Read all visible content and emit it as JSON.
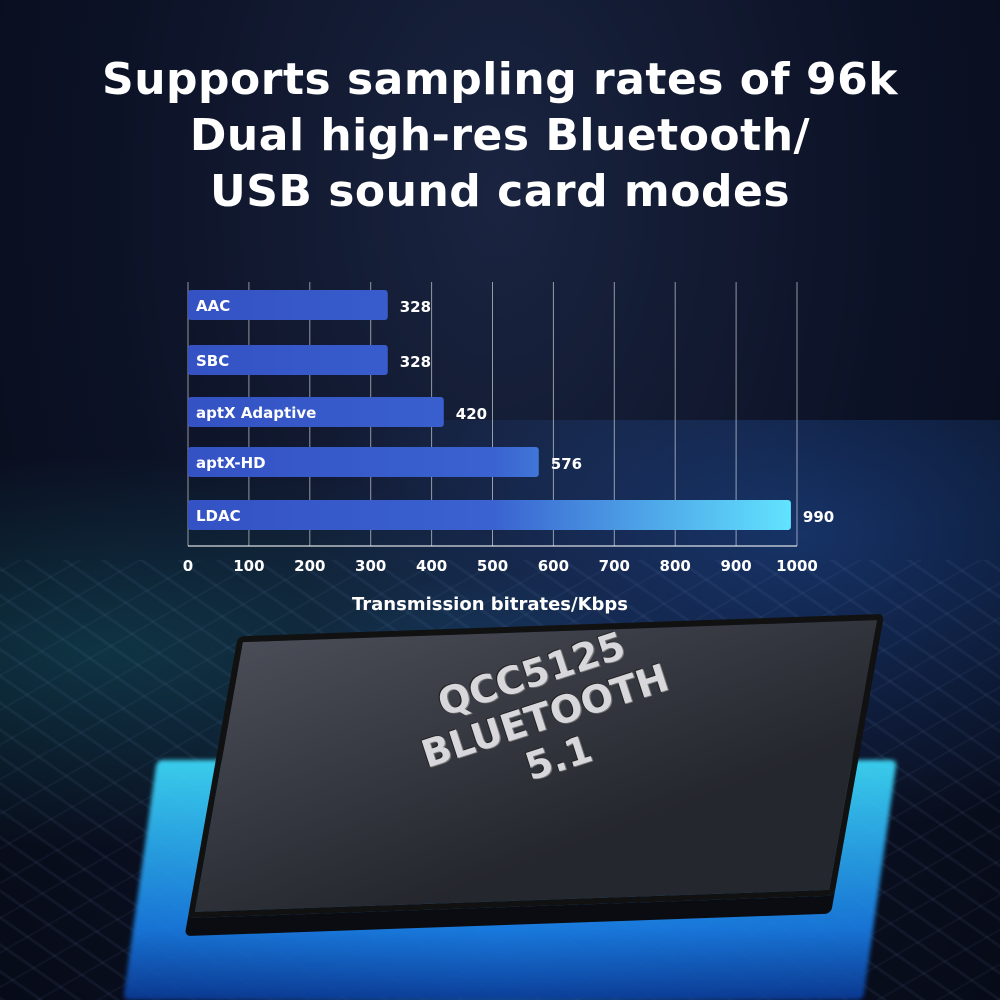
{
  "headline": [
    "Supports sampling rates of 96k",
    "Dual high-res Bluetooth/",
    "USB sound card modes"
  ],
  "chip": {
    "lines": [
      "QCC5125",
      "BLUETOOTH",
      "5.1"
    ]
  },
  "chart_data": {
    "type": "bar",
    "orientation": "horizontal",
    "categories": [
      "AAC",
      "SBC",
      "aptX Adaptive",
      "aptX-HD",
      "LDAC"
    ],
    "values": [
      328,
      328,
      420,
      576,
      990
    ],
    "xlabel": "Transmission bitrates/Kbps",
    "ylabel": "",
    "xlim": [
      0,
      1000
    ],
    "xticks": [
      "0",
      "100",
      "200",
      "300",
      "400",
      "500",
      "600",
      "700",
      "800",
      "900",
      "1000"
    ],
    "grid": true,
    "colors": {
      "bar_start": "#3452c4",
      "bar_end": "#62e6ff"
    }
  }
}
